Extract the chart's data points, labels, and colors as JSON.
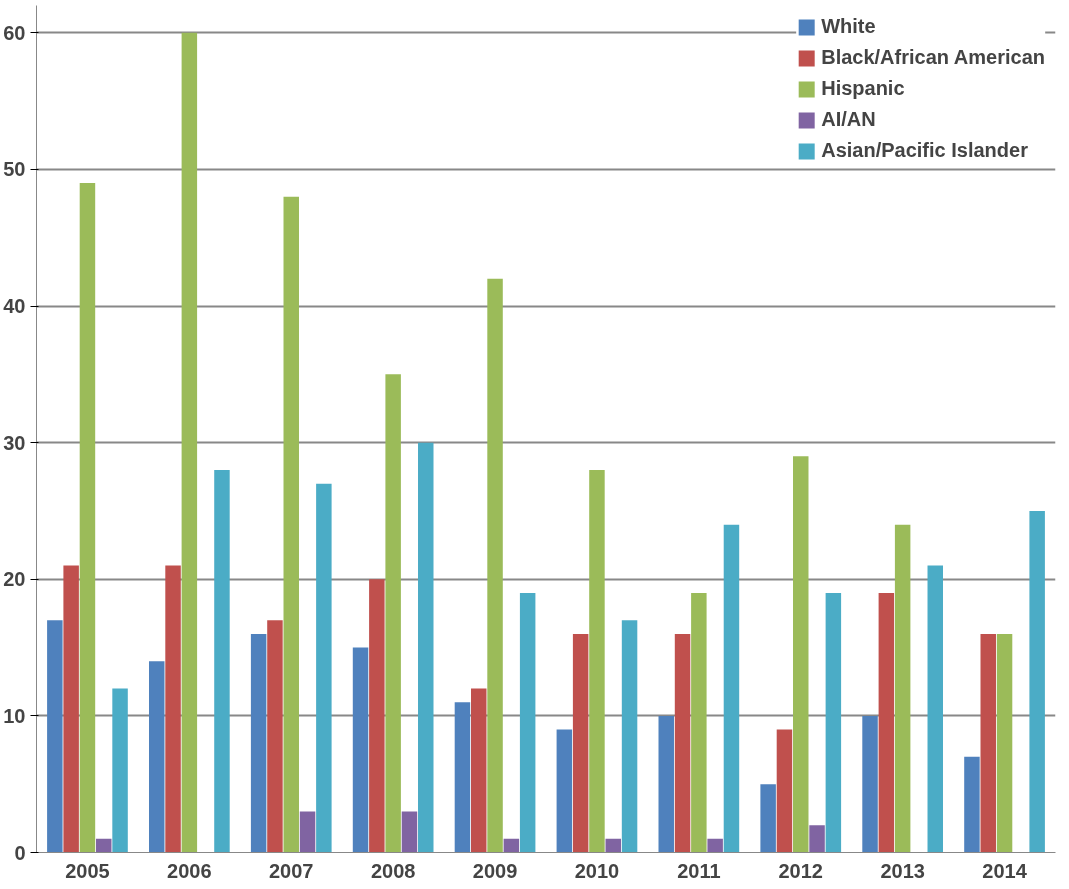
{
  "chart_data": {
    "type": "bar",
    "categories": [
      "2005",
      "2006",
      "2007",
      "2008",
      "2009",
      "2010",
      "2011",
      "2012",
      "2013",
      "2014"
    ],
    "series": [
      {
        "name": "White",
        "color": "#4f81bd",
        "values": [
          17,
          14,
          16,
          15,
          11,
          9,
          10,
          5,
          10,
          7
        ]
      },
      {
        "name": "Black/African American",
        "color": "#c0504d",
        "values": [
          21,
          21,
          17,
          20,
          12,
          16,
          16,
          9,
          19,
          16
        ]
      },
      {
        "name": "Hispanic",
        "color": "#9bbb59",
        "values": [
          49,
          60,
          48,
          35,
          42,
          28,
          19,
          29,
          24,
          16
        ]
      },
      {
        "name": "AI/AN",
        "color": "#8064a2",
        "values": [
          1,
          0,
          3,
          3,
          1,
          1,
          1,
          2,
          0,
          0
        ]
      },
      {
        "name": "Asian/Pacific Islander",
        "color": "#4bacc6",
        "values": [
          12,
          28,
          27,
          30,
          19,
          17,
          24,
          19,
          21,
          25
        ]
      }
    ],
    "ylim": [
      0,
      62
    ],
    "yticks": [
      0,
      10,
      20,
      30,
      40,
      50,
      60
    ],
    "grid": "y",
    "legend": "top right"
  }
}
